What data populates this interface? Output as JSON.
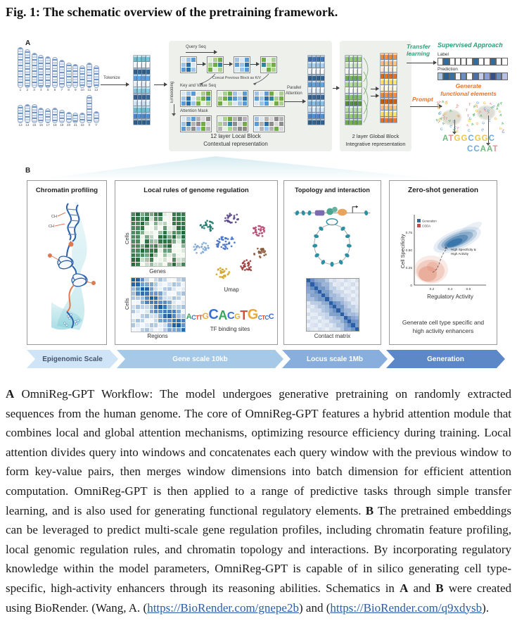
{
  "figure": {
    "title": "Fig. 1: The schematic overview of the pretraining framework."
  },
  "panelA": {
    "label": "A",
    "tokenize_label": "Tokenize",
    "embedding_label": "Embedding",
    "karyotype": {
      "row1": [
        "1",
        "2",
        "3",
        "4",
        "5",
        "6",
        "7",
        "8",
        "9",
        "10",
        "11",
        "12"
      ],
      "row2": [
        "13",
        "14",
        "15",
        "16",
        "17",
        "18",
        "19",
        "20",
        "21",
        "22",
        "X",
        "Y"
      ]
    },
    "local_block": {
      "query_seq_label": "Query Seq",
      "concat_label": "Concat Previous Block as K/V",
      "kv_label": "Key and Value Seq",
      "mask_label": "Attention Mask",
      "parallel_line1": "Parallel",
      "parallel_line2": "Attention",
      "caption_line1": "12 layer Local Block",
      "caption_line2": "Contextual representation"
    },
    "global_block": {
      "caption_line1": "2 layer Global Block",
      "caption_line2": "Integrative representation"
    },
    "transfer_line1": "Transfer",
    "transfer_line2": "learning",
    "prompt_label": "Prompt",
    "supervised": {
      "title": "Supervised Approach",
      "label_name": "Label",
      "prediction_name": "Prediction",
      "label_cells": [
        "#ffffff",
        "#2e6da4",
        "#ffffff",
        "#ffffff",
        "#ffffff",
        "#ffffff",
        "#2e6da4",
        "#ffffff",
        "#ffffff",
        "#2e6da4",
        "#ffffff",
        "#ffffff"
      ],
      "prediction_cells": [
        "#aac4e0",
        "#2e5f8a",
        "#3a6ea5",
        "#f4f6fa",
        "#6d8fc0",
        "#ffffff",
        "#4a6fa5",
        "#c3cbe8",
        "#8e9fd6",
        "#32508c",
        "#6d8fc0",
        "#b8c0e4"
      ]
    },
    "generate": {
      "title_line1": "Generate",
      "title_line2": "functional elements",
      "seq1": [
        {
          "ch": "A",
          "color": "#6cba7d"
        },
        {
          "ch": "T",
          "color": "#e89090"
        },
        {
          "ch": "G",
          "color": "#ecc54e"
        },
        {
          "ch": "G",
          "color": "#ecc54e"
        },
        {
          "ch": "C",
          "color": "#6fa8dc"
        },
        {
          "ch": "G",
          "color": "#ecc54e"
        },
        {
          "ch": "G",
          "color": "#ecc54e"
        },
        {
          "ch": "C",
          "color": "#6fa8dc"
        }
      ],
      "seq2": [
        {
          "ch": "C",
          "color": "#6fa8dc"
        },
        {
          "ch": "C",
          "color": "#6fa8dc"
        },
        {
          "ch": "A",
          "color": "#6cba7d"
        },
        {
          "ch": "A",
          "color": "#6cba7d"
        },
        {
          "ch": "T",
          "color": "#e89090"
        }
      ]
    }
  },
  "panelB": {
    "label": "B",
    "box1": {
      "title": "Chromatin profiling",
      "ch1": "CH",
      "ch2": "CH"
    },
    "box2": {
      "title": "Local rules of genome regulation",
      "heatmap_green": {
        "ylabel": "Cells",
        "xlabel": "Genes"
      },
      "heatmap_blue": {
        "ylabel": "Cells",
        "xlabel": "Regions"
      },
      "umap_label": "Umap",
      "tf_label": "TF binding sites",
      "logo": [
        {
          "ch": "A",
          "color": "#3aa35c",
          "size": 11
        },
        {
          "ch": "C",
          "color": "#3b6fd4",
          "size": 9
        },
        {
          "ch": "T",
          "color": "#d94f3d",
          "size": 8
        },
        {
          "ch": "T",
          "color": "#d94f3d",
          "size": 9
        },
        {
          "ch": "G",
          "color": "#e8a93a",
          "size": 12
        },
        {
          "ch": "C",
          "color": "#3b6fd4",
          "size": 20
        },
        {
          "ch": "A",
          "color": "#3aa35c",
          "size": 18
        },
        {
          "ch": "C",
          "color": "#3b6fd4",
          "size": 15
        },
        {
          "ch": "G",
          "color": "#e8a93a",
          "size": 11
        },
        {
          "ch": "T",
          "color": "#d94f3d",
          "size": 18
        },
        {
          "ch": "G",
          "color": "#e8a93a",
          "size": 20
        },
        {
          "ch": "C",
          "color": "#3b6fd4",
          "size": 8
        },
        {
          "ch": "T",
          "color": "#d94f3d",
          "size": 8
        },
        {
          "ch": "C",
          "color": "#3b6fd4",
          "size": 8
        },
        {
          "ch": "C",
          "color": "#3b6fd4",
          "size": 11
        }
      ]
    },
    "box3": {
      "title": "Topology and interaction",
      "matrix_label": "Contact matrix"
    },
    "box4": {
      "title": "Zero-shot generation",
      "plot": {
        "ylabel": "Cell Specificity",
        "xlabel": "Regulatory Activity",
        "yticks": [
          "0",
          "0.25",
          "0.50",
          "0.75"
        ],
        "xticks": [
          "0.2",
          "0.4",
          "0.6"
        ],
        "legend": [
          {
            "label": "Generation",
            "color": "#2e6da4"
          },
          {
            "label": "CODA",
            "color": "#c0504d"
          }
        ],
        "annotation_line1": "High Specificity &",
        "annotation_line2": "High Activity"
      },
      "caption_line1": "Generate cell type specific and",
      "caption_line2": "high activity enhancers"
    },
    "scale_banner": [
      {
        "label": "Epigenomic Scale",
        "color": "#cfe4f6",
        "text_color": "#44546a"
      },
      {
        "label": "Gene scale 10kb",
        "color": "#a6c9e8",
        "text_color": "#ffffff"
      },
      {
        "label": "Locus scale 1Mb",
        "color": "#88aedd",
        "text_color": "#ffffff"
      },
      {
        "label": "Generation",
        "color": "#5d88c8",
        "text_color": "#ffffff"
      }
    ]
  },
  "caption": {
    "segments": [
      {
        "t": "A",
        "b": 1
      },
      {
        "t": " OmniReg-GPT Workflow: The model undergoes generative pretraining on randomly extracted sequences from the human genome. The core of OmniReg-GPT features a hybrid attention module that combines local and global attention mechanisms, optimizing resource efficiency during training. Local attention divides query into windows and concatenates each query window with the previous window to form key-value pairs, then merges window dimensions into batch dimension for efficient attention computation. OmniReg-GPT is then applied to a range of predictive tasks through simple transfer learning, and is also used for generating functional regulatory elements. "
      },
      {
        "t": "B",
        "b": 1
      },
      {
        "t": " The pretrained embeddings can be leveraged to predict multi-scale gene regulation profiles, including chromatin feature profiling, local genomic regulation rules, and chromatin topology and interactions. By incorporating regulatory knowledge within the model parameters, OmniReg-GPT is capable of in silico generating cell type-specific, high-activity enhancers through its reasoning abilities. Schematics in "
      },
      {
        "t": "A",
        "b": 1
      },
      {
        "t": " and "
      },
      {
        "t": "B",
        "b": 1
      },
      {
        "t": " were created using BioRender. (Wang, A. ("
      },
      {
        "t": "https://BioRender.com/gnepe2b",
        "link": 1
      },
      {
        "t": ") and ("
      },
      {
        "t": "https://BioRender.com/q9xdysb",
        "link": 1
      },
      {
        "t": ")."
      }
    ]
  }
}
